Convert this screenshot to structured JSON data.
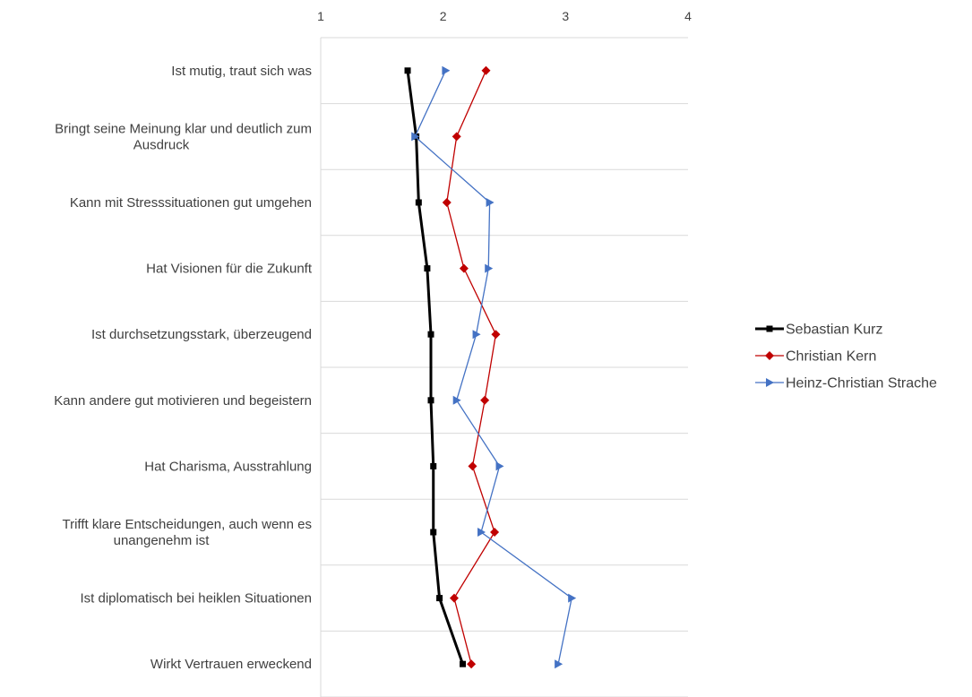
{
  "chart_data": {
    "type": "line",
    "orientation": "vertical",
    "xlim": [
      1,
      4
    ],
    "xticks": [
      "1",
      "2",
      "3",
      "4"
    ],
    "categories": [
      [
        "Ist mutig, traut sich was"
      ],
      [
        "Bringt seine Meinung klar und deutlich zum",
        "Ausdruck"
      ],
      [
        "Kann mit Stresssituationen gut umgehen"
      ],
      [
        "Hat Visionen für die Zukunft"
      ],
      [
        "Ist durchsetzungsstark, überzeugend"
      ],
      [
        "Kann andere gut motivieren und begeistern"
      ],
      [
        "Hat Charisma, Ausstrahlung"
      ],
      [
        "Trifft klare Entscheidungen, auch wenn es",
        "unangenehm ist"
      ],
      [
        "Ist diplomatisch bei heiklen Situationen"
      ],
      [
        "Wirkt Vertrauen erweckend"
      ]
    ],
    "series": [
      {
        "name": "Sebastian Kurz",
        "color": "#000000",
        "marker": "square",
        "stroke_width": 3,
        "values": [
          1.71,
          1.78,
          1.8,
          1.87,
          1.9,
          1.9,
          1.92,
          1.92,
          1.97,
          2.16
        ]
      },
      {
        "name": "Christian Kern",
        "color": "#c00000",
        "marker": "diamond",
        "stroke_width": 1.3,
        "values": [
          2.35,
          2.11,
          2.03,
          2.17,
          2.43,
          2.34,
          2.24,
          2.42,
          2.09,
          2.23
        ]
      },
      {
        "name": "Heinz-Christian Strache",
        "color": "#4472c4",
        "marker": "triangle",
        "stroke_width": 1.3,
        "values": [
          2.02,
          1.77,
          2.38,
          2.37,
          2.27,
          2.11,
          2.46,
          2.31,
          3.05,
          2.94
        ]
      }
    ],
    "grid": true,
    "legend_position": "right"
  }
}
